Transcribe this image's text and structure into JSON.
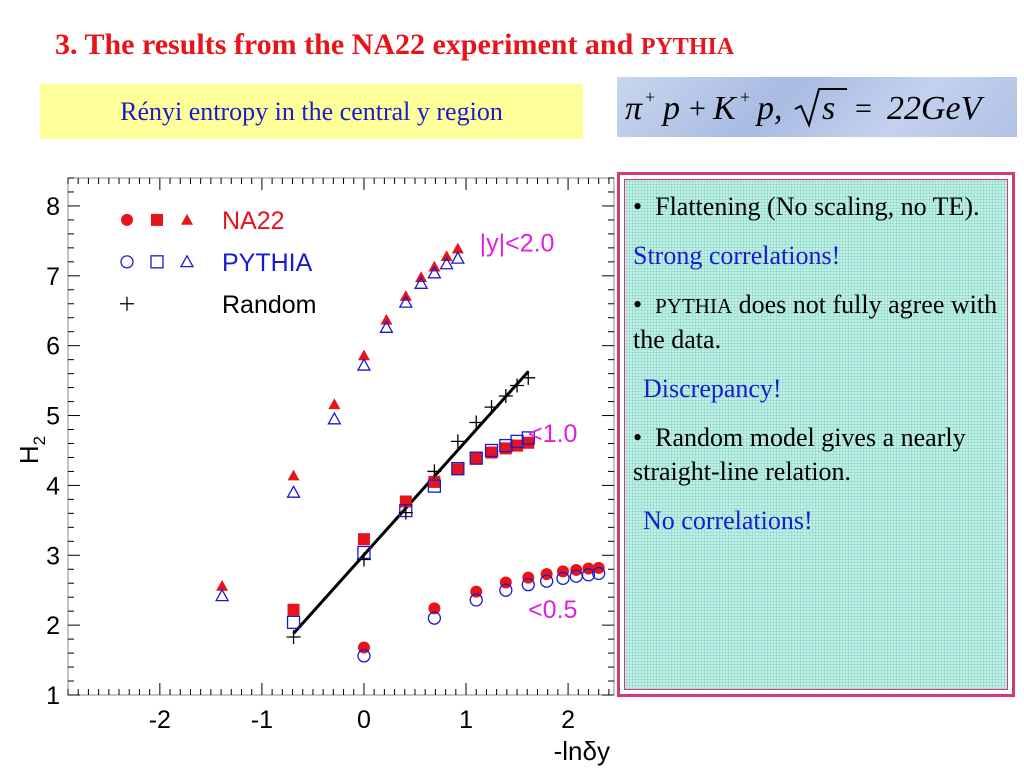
{
  "slide": {
    "title_main": "3. The results from the NA22 experiment and ",
    "title_small": "PYTHIA",
    "subtitle": "Rényi entropy in the central y region",
    "formula": "π⁺p + K⁺p, √s = 22GeV"
  },
  "notes": {
    "bullet": "•",
    "item1": "Flattening (No scaling, no TE).",
    "item1_comment": "Strong correlations!",
    "item2_word": "PYTHIA",
    "item2_rest": " does not fully agree with the data.",
    "item2_comment": "Discrepancy!",
    "item3": "Random model gives a nearly straight-line relation.",
    "item3_comment": "No correlations!"
  },
  "chart_data": {
    "type": "scatter",
    "xlabel": "-lnδy",
    "ylabel": "H2",
    "xlim": [
      -2.9,
      2.45
    ],
    "ylim": [
      1,
      8.4
    ],
    "xticks": [
      "-2",
      "-1",
      "0",
      "1",
      "2"
    ],
    "yticks": [
      "1",
      "2",
      "3",
      "4",
      "5",
      "6",
      "7",
      "8"
    ],
    "grid": false,
    "legend_placement": "top-left",
    "legend": [
      {
        "label": "NA22",
        "color": "#e8141b",
        "markers": [
          "filled-circle",
          "filled-square",
          "filled-triangle"
        ]
      },
      {
        "label": "PYTHIA",
        "color": "#1a1ad0",
        "markers": [
          "open-circle",
          "open-square",
          "open-triangle"
        ]
      },
      {
        "label": "Random",
        "color": "#000000",
        "markers": [
          "plus"
        ]
      }
    ],
    "region_labels": [
      {
        "text": "|y|<2.0",
        "color": "#e020e0",
        "x": 1.5,
        "y": 7.35
      },
      {
        "text": "<1.0",
        "color": "#e020e0",
        "x": 1.85,
        "y": 4.62
      },
      {
        "text": "<0.5",
        "color": "#e020e0",
        "x": 1.85,
        "y": 2.1
      }
    ],
    "series": [
      {
        "name": "NA22",
        "region": "|y|<2.0",
        "marker": "filled-triangle",
        "color": "#e8141b",
        "points": [
          [
            -1.39,
            2.56
          ],
          [
            -0.69,
            4.14
          ],
          [
            -0.29,
            5.16
          ],
          [
            0.0,
            5.86
          ],
          [
            0.22,
            6.37
          ],
          [
            0.41,
            6.71
          ],
          [
            0.56,
            6.98
          ],
          [
            0.69,
            7.13
          ],
          [
            0.81,
            7.28
          ],
          [
            0.92,
            7.39
          ]
        ]
      },
      {
        "name": "PYTHIA",
        "region": "|y|<2.0",
        "marker": "open-triangle",
        "color": "#1a1ad0",
        "points": [
          [
            -1.39,
            2.42
          ],
          [
            -0.69,
            3.9
          ],
          [
            -0.29,
            4.95
          ],
          [
            0.0,
            5.72
          ],
          [
            0.22,
            6.26
          ],
          [
            0.41,
            6.62
          ],
          [
            0.56,
            6.89
          ],
          [
            0.69,
            7.04
          ],
          [
            0.81,
            7.17
          ],
          [
            0.92,
            7.25
          ]
        ]
      },
      {
        "name": "NA22",
        "region": "<1.0",
        "marker": "filled-square",
        "color": "#e8141b",
        "points": [
          [
            -0.69,
            2.22
          ],
          [
            0.0,
            3.23
          ],
          [
            0.41,
            3.77
          ],
          [
            0.69,
            4.05
          ],
          [
            0.92,
            4.23
          ],
          [
            1.1,
            4.39
          ],
          [
            1.25,
            4.47
          ],
          [
            1.39,
            4.53
          ],
          [
            1.5,
            4.57
          ],
          [
            1.61,
            4.61
          ]
        ]
      },
      {
        "name": "PYTHIA",
        "region": "<1.0",
        "marker": "open-square",
        "color": "#1a1ad0",
        "points": [
          [
            -0.69,
            2.04
          ],
          [
            0.0,
            3.04
          ],
          [
            0.41,
            3.64
          ],
          [
            0.69,
            3.99
          ],
          [
            0.92,
            4.24
          ],
          [
            1.1,
            4.39
          ],
          [
            1.25,
            4.5
          ],
          [
            1.39,
            4.57
          ],
          [
            1.5,
            4.63
          ],
          [
            1.61,
            4.68
          ]
        ]
      },
      {
        "name": "NA22",
        "region": "<0.5",
        "marker": "filled-circle",
        "color": "#e8141b",
        "points": [
          [
            0.0,
            1.68
          ],
          [
            0.69,
            2.24
          ],
          [
            1.1,
            2.48
          ],
          [
            1.39,
            2.61
          ],
          [
            1.61,
            2.68
          ],
          [
            1.79,
            2.73
          ],
          [
            1.95,
            2.77
          ],
          [
            2.08,
            2.79
          ],
          [
            2.2,
            2.81
          ],
          [
            2.3,
            2.82
          ]
        ]
      },
      {
        "name": "PYTHIA",
        "region": "<0.5",
        "marker": "open-circle",
        "color": "#1a1ad0",
        "points": [
          [
            0.0,
            1.56
          ],
          [
            0.69,
            2.1
          ],
          [
            1.1,
            2.36
          ],
          [
            1.39,
            2.5
          ],
          [
            1.61,
            2.58
          ],
          [
            1.79,
            2.63
          ],
          [
            1.95,
            2.67
          ],
          [
            2.08,
            2.7
          ],
          [
            2.2,
            2.72
          ],
          [
            2.3,
            2.74
          ]
        ]
      },
      {
        "name": "Random",
        "region": "|y|<2.0",
        "marker": "plus",
        "color": "#000000",
        "points": [
          [
            -0.69,
            1.83
          ],
          [
            0.0,
            2.94
          ],
          [
            0.41,
            3.61
          ],
          [
            0.69,
            4.2
          ],
          [
            0.92,
            4.63
          ],
          [
            1.1,
            4.9
          ],
          [
            1.25,
            5.12
          ],
          [
            1.39,
            5.28
          ],
          [
            1.5,
            5.43
          ],
          [
            1.61,
            5.54
          ]
        ]
      }
    ],
    "fit_line": {
      "color": "#000000",
      "points": [
        [
          -0.69,
          1.88
        ],
        [
          1.61,
          5.63
        ]
      ]
    }
  }
}
